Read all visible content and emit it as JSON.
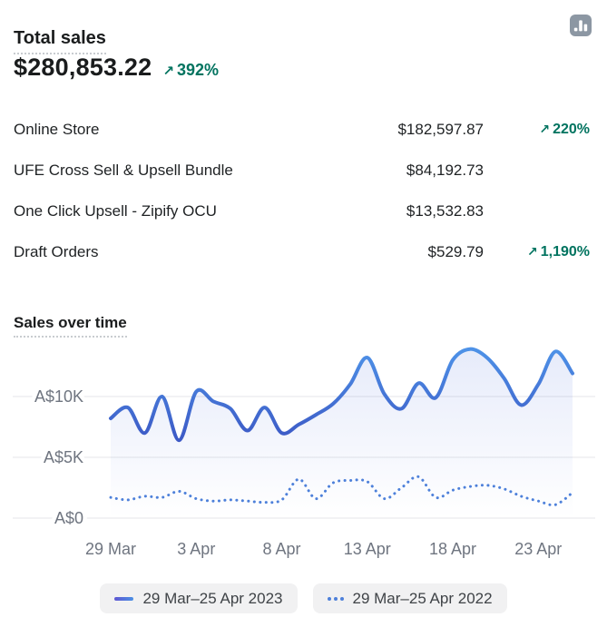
{
  "header": {
    "title": "Total sales",
    "value": "$280,853.22",
    "arrow": "↗",
    "change": "392%"
  },
  "breakdown": {
    "rows": [
      {
        "label": "Online Store",
        "amount": "$182,597.87",
        "arrow": "↗",
        "change": "220%"
      },
      {
        "label": "UFE Cross Sell & Upsell Bundle",
        "amount": "$84,192.73",
        "arrow": "",
        "change": ""
      },
      {
        "label": "One Click Upsell - Zipify OCU",
        "amount": "$13,532.83",
        "arrow": "",
        "change": ""
      },
      {
        "label": "Draft Orders",
        "amount": "$529.79",
        "arrow": "↗",
        "change": "1,190%"
      }
    ]
  },
  "section": {
    "title": "Sales over time"
  },
  "chart_data": {
    "type": "line",
    "title": "Sales over time",
    "x": [
      "29 Mar",
      "30 Mar",
      "31 Mar",
      "1 Apr",
      "2 Apr",
      "3 Apr",
      "4 Apr",
      "5 Apr",
      "6 Apr",
      "7 Apr",
      "8 Apr",
      "9 Apr",
      "10 Apr",
      "11 Apr",
      "12 Apr",
      "13 Apr",
      "14 Apr",
      "15 Apr",
      "16 Apr",
      "17 Apr",
      "18 Apr",
      "19 Apr",
      "20 Apr",
      "21 Apr",
      "22 Apr",
      "23 Apr",
      "24 Apr",
      "25 Apr"
    ],
    "series": [
      {
        "name": "29 Mar–25 Apr 2023",
        "style": "solid",
        "values": [
          8200,
          9100,
          7000,
          10000,
          6400,
          10400,
          9600,
          9000,
          7200,
          9100,
          7000,
          7700,
          8500,
          9400,
          11000,
          13200,
          10200,
          9000,
          11100,
          9900,
          13000,
          13900,
          13200,
          11500,
          9300,
          11000,
          13700,
          11900
        ]
      },
      {
        "name": "29 Mar–25 Apr 2022",
        "style": "dotted",
        "values": [
          1700,
          1500,
          1800,
          1700,
          2200,
          1600,
          1400,
          1500,
          1400,
          1300,
          1500,
          3200,
          1600,
          2900,
          3100,
          3000,
          1600,
          2500,
          3400,
          1700,
          2300,
          2600,
          2700,
          2400,
          1800,
          1400,
          1100,
          2100
        ]
      }
    ],
    "y_ticks": [
      {
        "label": "A$0",
        "value": 0
      },
      {
        "label": "A$5K",
        "value": 5000
      },
      {
        "label": "A$10K",
        "value": 10000
      }
    ],
    "x_tick_indices": [
      0,
      5,
      10,
      15,
      20,
      25
    ],
    "x_tick_labels": [
      "29 Mar",
      "3 Apr",
      "8 Apr",
      "13 Apr",
      "18 Apr",
      "23 Apr"
    ],
    "ylim": [
      0,
      14600
    ],
    "currency": "AUD",
    "grid": "horizontal",
    "legend_position": "bottom"
  },
  "legend": [
    {
      "label": "29 Mar–25 Apr 2023",
      "style": "solid"
    },
    {
      "label": "29 Mar–25 Apr 2022",
      "style": "dotted"
    }
  ],
  "colors": {
    "text_dark": "#1a1c1d",
    "text_subdued": "#6f7580",
    "positive_green": "#00735f",
    "gridline": "#e4e5e8",
    "line_2023_top": "#4e93e8",
    "line_2023_bottom": "#3b55c3",
    "line_2022_dotted": "#4d80da",
    "area_fill": "#6582e1",
    "legend_pill_bg": "#f1f1f2",
    "report_icon_bg": "#8c97a3",
    "dotted_underline": "#c8ccd0"
  }
}
